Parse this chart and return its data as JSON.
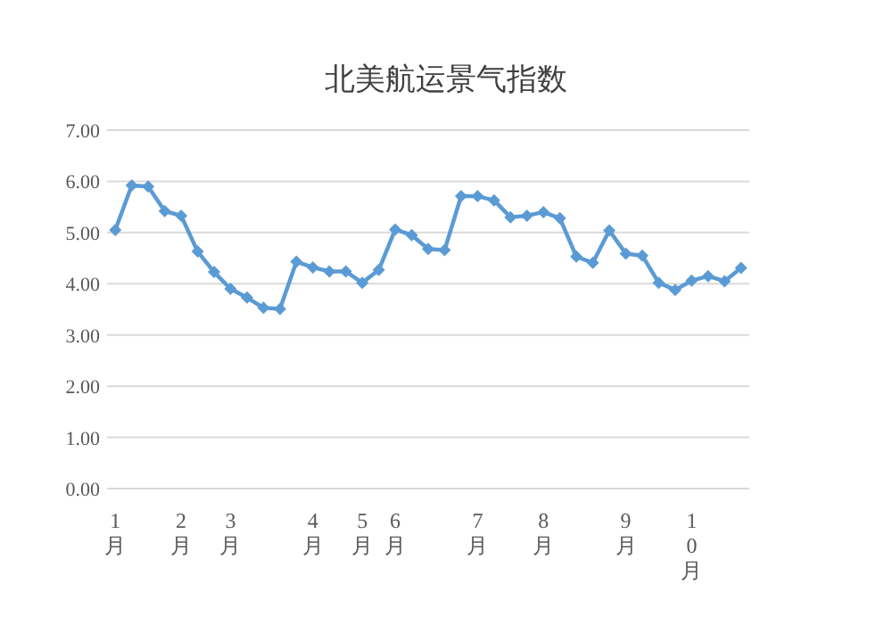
{
  "chart_data": {
    "type": "line",
    "title": "北美航运景气指数",
    "categories": [
      "1月",
      null,
      null,
      null,
      "2月",
      null,
      null,
      "3月",
      null,
      null,
      null,
      null,
      "4月",
      null,
      null,
      "5月",
      null,
      "6月",
      null,
      null,
      null,
      null,
      "7月",
      null,
      null,
      null,
      "8月",
      null,
      null,
      null,
      null,
      "9月",
      null,
      null,
      null,
      "10月",
      null,
      null,
      null
    ],
    "series": [
      {
        "color": "#5b9bd5",
        "values": [
          5.05,
          5.92,
          5.9,
          5.42,
          5.33,
          4.63,
          4.23,
          3.9,
          3.73,
          3.53,
          3.51,
          4.43,
          4.32,
          4.24,
          4.24,
          4.02,
          4.27,
          5.06,
          4.95,
          4.68,
          4.66,
          5.71,
          5.71,
          5.63,
          5.3,
          5.33,
          5.4,
          5.28,
          4.53,
          4.41,
          5.04,
          4.59,
          4.55,
          4.02,
          3.88,
          4.06,
          4.15,
          4.05,
          4.31
        ]
      }
    ],
    "ylim": [
      0,
      7
    ],
    "yticks": [
      {
        "value": 0,
        "label": "0.00"
      },
      {
        "value": 1,
        "label": "1.00"
      },
      {
        "value": 2,
        "label": "2.00"
      },
      {
        "value": 3,
        "label": "3.00"
      },
      {
        "value": 4,
        "label": "4.00"
      },
      {
        "value": 5,
        "label": "5.00"
      },
      {
        "value": 6,
        "label": "6.00"
      },
      {
        "value": 7,
        "label": "7.00"
      }
    ],
    "grid": "y",
    "marker": "diamond",
    "line_style": "solid"
  }
}
